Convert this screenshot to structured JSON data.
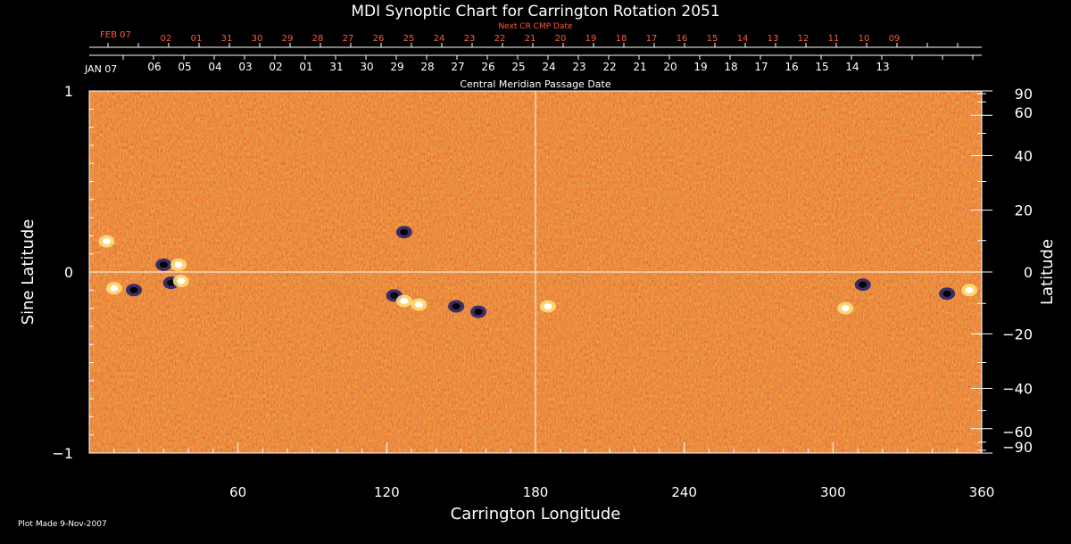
{
  "chart_data": {
    "type": "heatmap",
    "title": "MDI Synoptic Chart for Carrington Rotation 2051",
    "xlabel": "Carrington Longitude",
    "ylabel_left": "Sine Latitude",
    "ylabel_right": "Latitude",
    "xlim": [
      0,
      360
    ],
    "ylim": [
      -1,
      1
    ],
    "x_ticks": [
      60,
      120,
      180,
      240,
      300,
      360
    ],
    "x_minor_step": 10,
    "y_left_ticks": [
      {
        "v": 1,
        "label": "1"
      },
      {
        "v": 0,
        "label": "0"
      },
      {
        "v": -1,
        "label": "−1"
      }
    ],
    "y_left_minor_step": 0.1,
    "y_right_ticks": [
      {
        "deg": 90,
        "label": "90"
      },
      {
        "deg": 60,
        "label": "60"
      },
      {
        "deg": 40,
        "label": "40"
      },
      {
        "deg": 20,
        "label": "20"
      },
      {
        "deg": 0,
        "label": "0"
      },
      {
        "deg": -20,
        "label": "−20"
      },
      {
        "deg": -40,
        "label": "−40"
      },
      {
        "deg": -60,
        "label": "−60"
      },
      {
        "deg": -90,
        "label": "−90"
      }
    ],
    "y_right_minor_deg": [
      80,
      70,
      50,
      30,
      10,
      -10,
      -30,
      -50,
      -70,
      -80
    ],
    "crosshair": {
      "longitude": 180,
      "sine_latitude": 0
    },
    "cmp_dates": {
      "axis_title": "Central Meridian Passage Date",
      "month_label": "JAN 07",
      "labels": [
        "06",
        "05",
        "04",
        "03",
        "02",
        "01",
        "31",
        "30",
        "29",
        "28",
        "27",
        "26",
        "25",
        "24",
        "23",
        "22",
        "21",
        "20",
        "19",
        "18",
        "17",
        "16",
        "15",
        "14",
        "13"
      ]
    },
    "next_cr_dates": {
      "axis_title": "Next CR CMP Date",
      "month_label": "FEB 07",
      "labels": [
        "02",
        "01",
        "31",
        "30",
        "29",
        "28",
        "27",
        "26",
        "25",
        "24",
        "23",
        "22",
        "21",
        "20",
        "19",
        "18",
        "17",
        "16",
        "15",
        "14",
        "13",
        "12",
        "11",
        "10",
        "09"
      ]
    },
    "colors": {
      "background_field": "#e2611a",
      "positive_strong": "#ffffff",
      "positive": "#ffe27a",
      "negative": "#1a1f6e",
      "negative_strong": "#000000",
      "top_labels": "#ff5a3c",
      "axis": "#ffffff"
    },
    "active_regions": [
      {
        "lon": 10,
        "sinlat": -0.09,
        "polarity": "positive"
      },
      {
        "lon": 18,
        "sinlat": -0.1,
        "polarity": "negative"
      },
      {
        "lon": 30,
        "sinlat": 0.04,
        "polarity": "negative"
      },
      {
        "lon": 33,
        "sinlat": -0.06,
        "polarity": "negative"
      },
      {
        "lon": 37,
        "sinlat": -0.05,
        "polarity": "positive"
      },
      {
        "lon": 36,
        "sinlat": 0.04,
        "polarity": "positive"
      },
      {
        "lon": 7,
        "sinlat": 0.17,
        "polarity": "positive"
      },
      {
        "lon": 123,
        "sinlat": -0.13,
        "polarity": "negative"
      },
      {
        "lon": 127,
        "sinlat": -0.16,
        "polarity": "positive"
      },
      {
        "lon": 133,
        "sinlat": -0.18,
        "polarity": "positive"
      },
      {
        "lon": 148,
        "sinlat": -0.19,
        "polarity": "negative"
      },
      {
        "lon": 157,
        "sinlat": -0.22,
        "polarity": "negative"
      },
      {
        "lon": 127,
        "sinlat": 0.22,
        "polarity": "negative"
      },
      {
        "lon": 185,
        "sinlat": -0.19,
        "polarity": "positive"
      },
      {
        "lon": 312,
        "sinlat": -0.07,
        "polarity": "negative"
      },
      {
        "lon": 305,
        "sinlat": -0.2,
        "polarity": "positive"
      },
      {
        "lon": 355,
        "sinlat": -0.1,
        "polarity": "positive"
      },
      {
        "lon": 346,
        "sinlat": -0.12,
        "polarity": "negative"
      }
    ]
  },
  "footer": {
    "plot_made": "Plot Made  9-Nov-2007"
  }
}
